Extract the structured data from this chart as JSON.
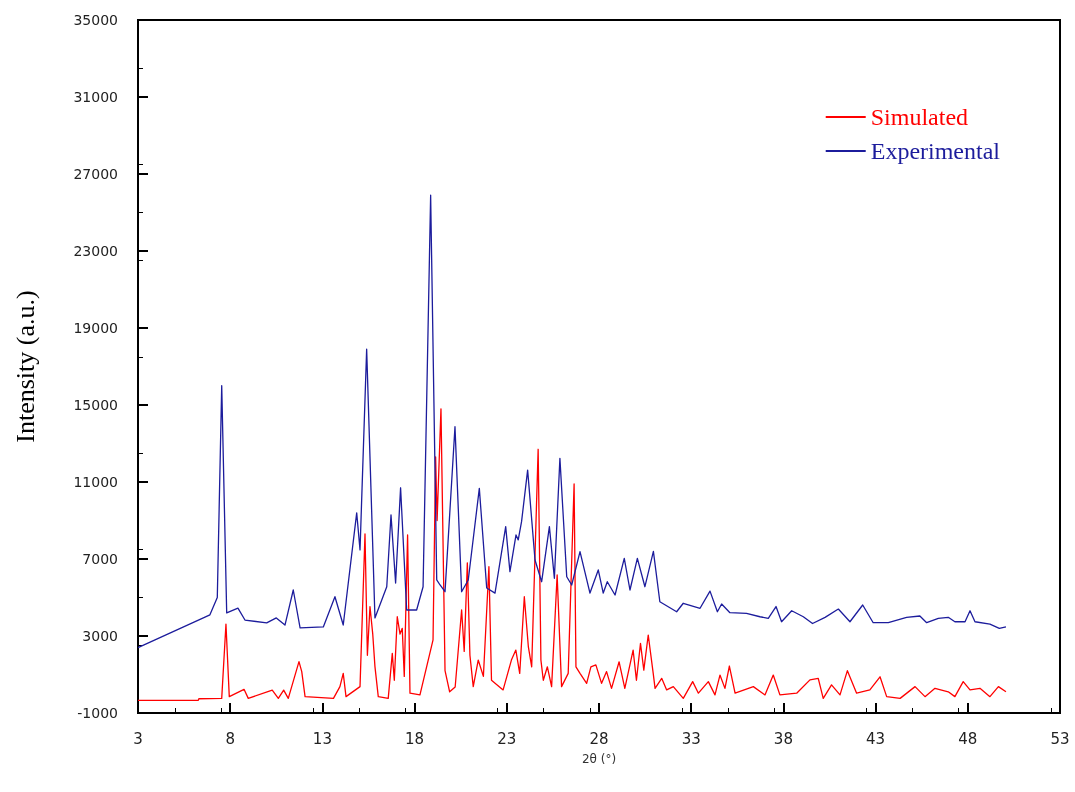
{
  "chart_data": {
    "type": "line",
    "xlabel": "2θ (°)",
    "ylabel": "Intensity (a.u.)",
    "xlim": [
      3,
      53
    ],
    "xticks": [
      3,
      8,
      13,
      18,
      23,
      28,
      33,
      38,
      43,
      48,
      53
    ],
    "ylim": [
      -1000,
      35000
    ],
    "yticks": [
      -1000,
      3000,
      7000,
      11000,
      15000,
      19000,
      23000,
      27000,
      31000,
      35000
    ],
    "grid": false,
    "legend": "top right",
    "marker": "none",
    "line_style": "solid",
    "series": [
      {
        "name": "Simulated",
        "color": "#ff0000",
        "x": [
          3,
          6.27,
          6.3,
          7.54,
          7.77,
          7.95,
          8.75,
          8.98,
          10.28,
          10.61,
          10.9,
          11.15,
          11.73,
          11.88,
          12.06,
          13.6,
          13.95,
          14.13,
          14.28,
          15.04,
          15.31,
          15.44,
          15.58,
          15.73,
          15.85,
          16.03,
          16.57,
          16.79,
          16.9,
          17.06,
          17.21,
          17.33,
          17.44,
          17.62,
          17.75,
          18.29,
          19.0,
          19.14,
          19.22,
          19.43,
          19.65,
          19.9,
          20.2,
          20.55,
          20.69,
          20.86,
          21.0,
          21.18,
          21.45,
          21.73,
          22.03,
          22.17,
          22.8,
          23.25,
          23.49,
          23.7,
          23.95,
          24.17,
          24.35,
          24.7,
          24.85,
          24.98,
          25.2,
          25.43,
          25.73,
          25.97,
          26.33,
          26.65,
          26.75,
          26.97,
          27.33,
          27.56,
          27.83,
          28.14,
          28.41,
          28.68,
          29.09,
          29.4,
          29.85,
          30.03,
          30.25,
          30.43,
          30.67,
          30.94,
          31.04,
          31.4,
          31.67,
          32.03,
          32.57,
          33.08,
          33.39,
          33.93,
          34.29,
          34.56,
          34.83,
          35.07,
          35.38,
          36.37,
          37.0,
          37.45,
          37.81,
          38.72,
          39.44,
          39.89,
          40.16,
          40.61,
          41.07,
          41.47,
          41.97,
          42.69,
          43.24,
          43.6,
          44.33,
          45.14,
          45.68,
          46.22,
          46.94,
          47.3,
          47.75,
          48.12,
          48.66,
          49.2,
          49.66,
          50.07
        ],
        "values": [
          -340,
          -340,
          -260,
          -240,
          3620,
          -150,
          230,
          -240,
          190,
          -240,
          190,
          -240,
          1670,
          1150,
          -150,
          -240,
          370,
          1060,
          -150,
          370,
          8300,
          2000,
          4530,
          3100,
          1410,
          -150,
          -240,
          2100,
          700,
          4000,
          3100,
          3400,
          900,
          8250,
          30,
          -60,
          2800,
          12300,
          9000,
          14800,
          1200,
          100,
          350,
          4350,
          2200,
          6800,
          2000,
          370,
          1750,
          900,
          6600,
          700,
          200,
          1750,
          2270,
          1060,
          5040,
          2430,
          1400,
          12700,
          1750,
          700,
          1400,
          370,
          6170,
          370,
          1060,
          10900,
          1400,
          1060,
          540,
          1400,
          1500,
          540,
          1150,
          280,
          1660,
          280,
          2270,
          700,
          2620,
          1230,
          3050,
          1060,
          280,
          800,
          200,
          370,
          -240,
          630,
          30,
          630,
          -60,
          970,
          280,
          1440,
          30,
          370,
          -60,
          970,
          -60,
          30,
          720,
          800,
          -240,
          460,
          -60,
          1200,
          30,
          200,
          880,
          -150,
          -240,
          370,
          -150,
          280,
          100,
          -150,
          630,
          200,
          280,
          -150,
          370,
          100
        ]
      },
      {
        "name": "Experimental",
        "color": "#1c1c9c",
        "x": [
          3,
          6.9,
          7.3,
          7.54,
          7.81,
          8.42,
          8.8,
          9.98,
          10.5,
          10.97,
          11.42,
          11.79,
          13.05,
          13.68,
          14.13,
          14.86,
          15.04,
          15.4,
          15.85,
          16.49,
          16.72,
          16.97,
          17.24,
          17.57,
          18.11,
          18.46,
          18.87,
          19.2,
          19.38,
          19.65,
          20.19,
          20.55,
          20.91,
          21.51,
          21.91,
          22.36,
          22.94,
          23.17,
          23.5,
          23.62,
          23.8,
          24.13,
          24.53,
          24.89,
          25.31,
          25.58,
          25.88,
          26.25,
          26.52,
          26.97,
          27.51,
          27.96,
          28.23,
          28.45,
          28.87,
          29.37,
          29.68,
          30.08,
          30.49,
          30.95,
          31.3,
          32.21,
          32.57,
          33.48,
          34.02,
          34.42,
          34.65,
          35.1,
          36.0,
          36.73,
          37.18,
          37.6,
          37.9,
          38.45,
          39.08,
          39.58,
          40.26,
          40.98,
          41.61,
          42.3,
          42.87,
          43.69,
          44.68,
          45.4,
          45.77,
          46.4,
          46.94,
          47.3,
          47.85,
          48.12,
          48.39,
          49.2,
          49.71,
          50.07
        ],
        "values": [
          2400,
          4100,
          5000,
          16000,
          4200,
          4450,
          3830,
          3680,
          3940,
          3570,
          5390,
          3420,
          3470,
          5040,
          3570,
          9400,
          7470,
          17900,
          3940,
          5560,
          9290,
          5750,
          10700,
          4350,
          4350,
          5560,
          25900,
          5910,
          5650,
          5300,
          13870,
          5300,
          5910,
          10670,
          5490,
          5230,
          8680,
          6340,
          8250,
          7990,
          8940,
          11620,
          6950,
          5820,
          8680,
          6000,
          12230,
          6080,
          5650,
          7380,
          5230,
          6430,
          5230,
          5820,
          5130,
          7030,
          5390,
          7030,
          5560,
          7400,
          4780,
          4260,
          4700,
          4440,
          5330,
          4260,
          4660,
          4210,
          4180,
          4000,
          3920,
          4530,
          3740,
          4310,
          4000,
          3650,
          3970,
          4400,
          3740,
          4610,
          3690,
          3690,
          3970,
          4040,
          3690,
          3920,
          3970,
          3740,
          3740,
          4310,
          3740,
          3620,
          3400,
          3480
        ]
      }
    ]
  }
}
